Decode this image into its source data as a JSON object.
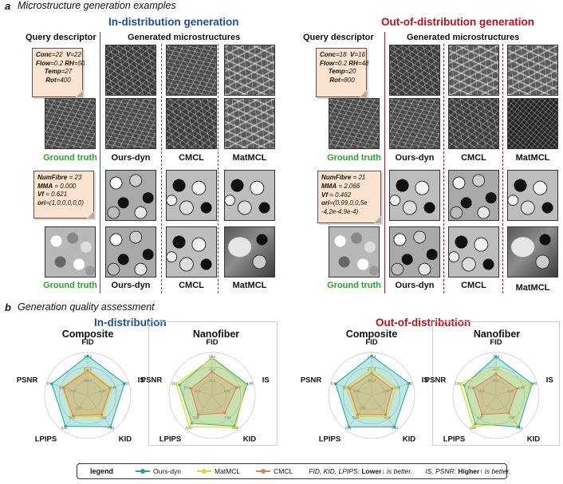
{
  "panel_a": {
    "letter": "a",
    "title": "Microstructure generation examples",
    "in_header": "In-distribution generation",
    "ood_header": "Out-of-distribution generation",
    "query_header": "Query descriptor",
    "generated_header": "Generated microstructures",
    "ground_truth": "Ground truth",
    "methods": [
      "Ours-dyn",
      "CMCL",
      "MatMCL"
    ],
    "nanofiber_in": [
      {
        "k": "Conc",
        "v": "=22"
      },
      {
        "k": "V",
        "v": "=22"
      },
      {
        "k": "Flow",
        "v": "=0.2"
      },
      {
        "k": "RH",
        "v": "=50"
      },
      {
        "k": "Temp",
        "v": "=27"
      },
      {
        "k": "Rot",
        "v": "=400"
      }
    ],
    "nanofiber_ood": [
      {
        "k": "Conc",
        "v": "=18"
      },
      {
        "k": "V",
        "v": "=16"
      },
      {
        "k": "Flow",
        "v": "=0.2"
      },
      {
        "k": "RH",
        "v": "=48"
      },
      {
        "k": "Temp",
        "v": "=20"
      },
      {
        "k": "Rot",
        "v": "=800"
      }
    ],
    "composite_in": [
      {
        "k": "NumFibre",
        "v": " = 23"
      },
      {
        "k": "MMA",
        "v": " = 0.000"
      },
      {
        "k": "Vf",
        "v": " = 0.621"
      },
      {
        "k": "ori",
        "v": "=(1,0,0,0,0,0)"
      }
    ],
    "composite_ood": [
      {
        "k": "NumFibre",
        "v": " = 21"
      },
      {
        "k": "MMA",
        "v": " = 2.066"
      },
      {
        "k": "Vf",
        "v": " = 0.462"
      },
      {
        "k": "ori",
        "v": "=(0.99,0,0,5e"
      },
      {
        "k": "",
        "v": "-4,2e-4,9e-4)"
      }
    ]
  },
  "panel_b": {
    "letter": "b",
    "title": "Generation quality assessment",
    "in_header": "In-distribution",
    "ood_header": "Out-of-distribution",
    "legend": {
      "title": "legend",
      "items": [
        {
          "name": "Ours-dyn",
          "color": "#1aa79b"
        },
        {
          "name": "MatMCL",
          "color": "#e0d532"
        },
        {
          "name": "CMCL",
          "color": "#d9834e"
        }
      ],
      "note1_pre": "FID, KID, LPIPS: ",
      "note1_bold": "Lower↓",
      "note1_post": " is better.",
      "note2_pre": "IS, PSNR: ",
      "note2_bold": "Higher↑",
      "note2_post": " is better."
    }
  },
  "chart_data": [
    {
      "type": "radar",
      "title": "Composite",
      "group": "In-distribution",
      "axes": [
        "FID",
        "IS",
        "KID",
        "LPIPS",
        "PSNR"
      ],
      "ring_labels": {
        "FID": [
          "402.5",
          "223.0",
          "288.4"
        ],
        "IS": [
          "1.01",
          "1.48",
          "1.34"
        ],
        "KID": [
          "0.34",
          "0.41"
        ],
        "LPIPS": [
          "0.51",
          "0.53",
          "0.57"
        ],
        "PSNR": [
          "9.08",
          "9.26",
          "9.67"
        ]
      },
      "series": [
        {
          "name": "Ours-dyn",
          "values": [
            0.92,
            0.9,
            0.9,
            0.88,
            0.88
          ]
        },
        {
          "name": "MatMCL",
          "values": [
            0.62,
            0.58,
            0.6,
            0.62,
            0.62
          ]
        },
        {
          "name": "CMCL",
          "values": [
            0.58,
            0.55,
            0.55,
            0.58,
            0.6
          ]
        }
      ]
    },
    {
      "type": "radar",
      "title": "Nanofiber",
      "group": "In-distribution",
      "axes": [
        "FID",
        "IS",
        "KID",
        "LPIPS",
        "PSNR"
      ],
      "ring_labels": {
        "FID": [
          "29.4",
          "29.0",
          "31.5"
        ],
        "IS": [
          "1.96",
          "1.89",
          "1.54"
        ],
        "KID": [
          "0.05",
          "0.01"
        ],
        "LPIPS": [
          "0.30",
          "0.38"
        ],
        "PSNR": [
          "13.2",
          "13.2",
          "11.3"
        ]
      },
      "series": [
        {
          "name": "Ours-dyn",
          "values": [
            0.88,
            0.85,
            0.88,
            0.8,
            0.8
          ]
        },
        {
          "name": "MatMCL",
          "values": [
            0.86,
            0.82,
            0.92,
            0.9,
            0.88
          ]
        },
        {
          "name": "CMCL",
          "values": [
            0.55,
            0.6,
            0.5,
            0.55,
            0.52
          ]
        }
      ]
    },
    {
      "type": "radar",
      "title": "Composite",
      "group": "Out-of-distribution",
      "axes": [
        "FID",
        "IS",
        "KID",
        "LPIPS",
        "PSNR"
      ],
      "ring_labels": {
        "FID": [
          "179.4",
          "278.0",
          "288.3"
        ],
        "IS": [
          "1.62",
          "1.56",
          "1.38"
        ],
        "KID": [
          "0.24",
          "0.32"
        ],
        "LPIPS": [
          "0.51",
          "0.55",
          "0.56"
        ],
        "PSNR": [
          "8.18",
          "8.45",
          "9.65"
        ]
      },
      "series": [
        {
          "name": "Ours-dyn",
          "values": [
            0.92,
            0.92,
            0.9,
            0.9,
            0.88
          ]
        },
        {
          "name": "MatMCL",
          "values": [
            0.62,
            0.6,
            0.62,
            0.6,
            0.62
          ]
        },
        {
          "name": "CMCL",
          "values": [
            0.52,
            0.5,
            0.55,
            0.55,
            0.55
          ]
        }
      ]
    },
    {
      "type": "radar",
      "title": "Nanofiber",
      "group": "Out-of-distribution",
      "axes": [
        "FID",
        "IS",
        "KID",
        "LPIPS",
        "PSNR"
      ],
      "ring_labels": {
        "FID": [
          "37.9",
          "43.3",
          "48.4"
        ],
        "IS": [
          "1.93",
          "1.89",
          "1.55"
        ],
        "KID": [
          "0.01",
          "0.05"
        ],
        "LPIPS": [
          "0.28",
          "0.27"
        ],
        "PSNR": [
          "13.2",
          "12.2",
          "11.5"
        ]
      },
      "series": [
        {
          "name": "Ours-dyn",
          "values": [
            0.9,
            0.88,
            0.9,
            0.82,
            0.78
          ]
        },
        {
          "name": "MatMCL",
          "values": [
            0.65,
            0.84,
            0.78,
            0.9,
            0.88
          ]
        },
        {
          "name": "CMCL",
          "values": [
            0.5,
            0.52,
            0.5,
            0.55,
            0.55
          ]
        }
      ]
    }
  ]
}
